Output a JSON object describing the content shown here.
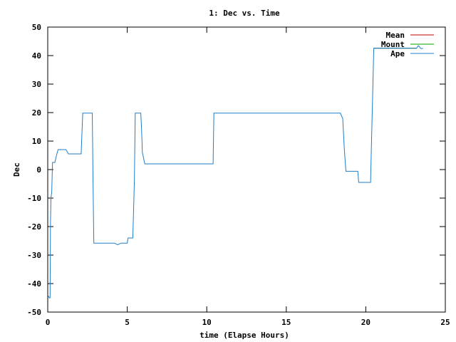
{
  "chart_data": {
    "type": "line",
    "title": "1: Dec vs. Time",
    "xlabel": "time (Elapse Hours)",
    "ylabel": "Dec",
    "xlim": [
      0,
      25
    ],
    "ylim": [
      -50,
      50
    ],
    "x_ticks": [
      0,
      5,
      10,
      15,
      20,
      25
    ],
    "y_ticks": [
      -50,
      -40,
      -30,
      -20,
      -10,
      0,
      10,
      20,
      30,
      40,
      50
    ],
    "grid": false,
    "legend_position": "top-right",
    "series": [
      {
        "name": "Mean",
        "color": "#c00000",
        "points": [
          [
            6.1,
            2.0
          ],
          [
            10.4,
            2.0
          ],
          [
            null,
            null
          ],
          [
            20.5,
            42.6
          ],
          [
            23.2,
            42.6
          ]
        ]
      },
      {
        "name": "Mount",
        "color": "#00a000",
        "points": [
          [
            20.5,
            42.6
          ],
          [
            23.2,
            42.6
          ]
        ]
      },
      {
        "name": "Ape",
        "color": "#1f7ecb",
        "points": [
          [
            0.0,
            -44.0
          ],
          [
            0.1,
            -45.0
          ],
          [
            0.15,
            -45.0
          ],
          [
            0.17,
            -20.0
          ],
          [
            0.2,
            -10.0
          ],
          [
            0.25,
            -8.0
          ],
          [
            0.3,
            2.5
          ],
          [
            0.45,
            2.5
          ],
          [
            0.55,
            5.0
          ],
          [
            0.65,
            7.0
          ],
          [
            1.15,
            7.0
          ],
          [
            1.3,
            5.5
          ],
          [
            2.1,
            5.5
          ],
          [
            2.2,
            19.8
          ],
          [
            2.8,
            19.8
          ],
          [
            2.85,
            -5.0
          ],
          [
            2.9,
            -25.8
          ],
          [
            4.2,
            -25.8
          ],
          [
            4.4,
            -26.4
          ],
          [
            4.6,
            -25.8
          ],
          [
            5.0,
            -25.8
          ],
          [
            5.05,
            -24.0
          ],
          [
            5.35,
            -24.0
          ],
          [
            5.45,
            -4.0
          ],
          [
            5.5,
            19.8
          ],
          [
            5.85,
            19.8
          ],
          [
            5.9,
            14.0
          ],
          [
            5.95,
            6.0
          ],
          [
            6.1,
            2.0
          ],
          [
            10.4,
            2.0
          ],
          [
            10.45,
            19.8
          ],
          [
            18.4,
            19.8
          ],
          [
            18.5,
            18.5
          ],
          [
            18.55,
            18.0
          ],
          [
            18.65,
            7.0
          ],
          [
            18.75,
            -0.6
          ],
          [
            19.5,
            -0.6
          ],
          [
            19.55,
            -4.5
          ],
          [
            20.3,
            -4.5
          ],
          [
            20.35,
            7.5
          ],
          [
            20.45,
            30.0
          ],
          [
            20.5,
            42.6
          ],
          [
            23.2,
            42.6
          ],
          [
            23.3,
            43.5
          ],
          [
            23.45,
            42.5
          ],
          [
            23.6,
            42.5
          ]
        ]
      }
    ]
  }
}
